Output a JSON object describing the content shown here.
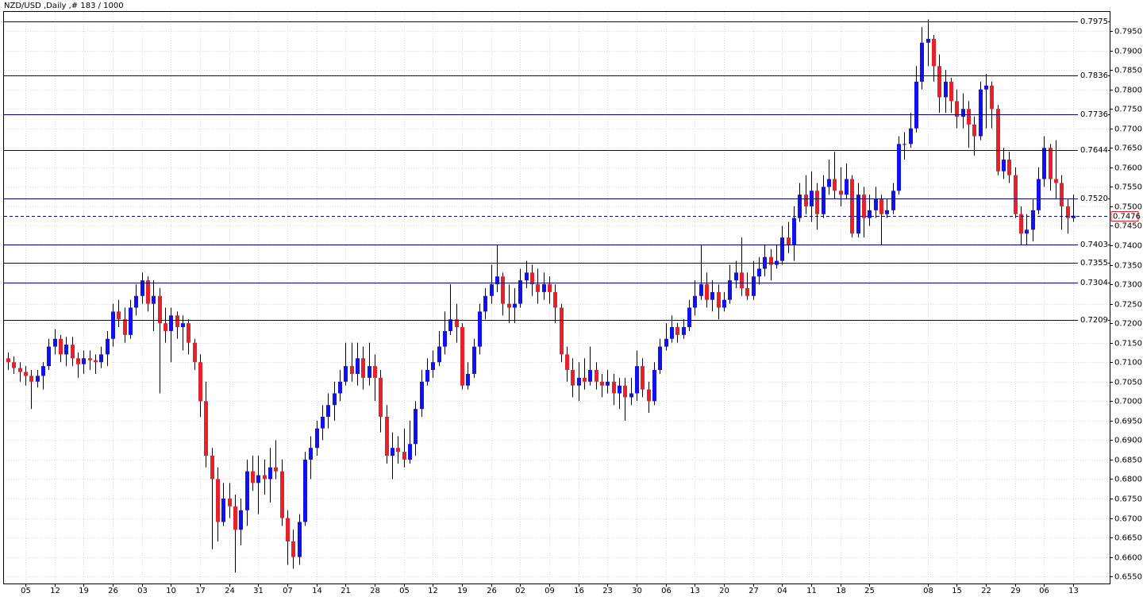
{
  "chart_data": {
    "type": "candlestick",
    "title": "NZD/USD ,Daily ,# 183 / 1000",
    "up_color": "#1010f0",
    "down_color": "#e8202a",
    "level_color": "#000080",
    "last_color": "#e8202a",
    "grid": true,
    "ylim": [
      0.6532,
      0.7999
    ],
    "yticks": [
      {
        "value": 0.655,
        "label": "0.6550"
      },
      {
        "value": 0.66,
        "label": "0.6600"
      },
      {
        "value": 0.665,
        "label": "0.6650"
      },
      {
        "value": 0.67,
        "label": "0.6700"
      },
      {
        "value": 0.675,
        "label": "0.6750"
      },
      {
        "value": 0.68,
        "label": "0.6800"
      },
      {
        "value": 0.685,
        "label": "0.6850"
      },
      {
        "value": 0.69,
        "label": "0.6900"
      },
      {
        "value": 0.695,
        "label": "0.6950"
      },
      {
        "value": 0.7,
        "label": "0.7000"
      },
      {
        "value": 0.705,
        "label": "0.7050"
      },
      {
        "value": 0.71,
        "label": "0.7100"
      },
      {
        "value": 0.715,
        "label": "0.7150"
      },
      {
        "value": 0.72,
        "label": "0.7200"
      },
      {
        "value": 0.725,
        "label": "0.7250"
      },
      {
        "value": 0.73,
        "label": "0.7300"
      },
      {
        "value": 0.735,
        "label": "0.7350"
      },
      {
        "value": 0.74,
        "label": "0.7400"
      },
      {
        "value": 0.745,
        "label": "0.7450"
      },
      {
        "value": 0.75,
        "label": "0.7500"
      },
      {
        "value": 0.755,
        "label": "0.7550"
      },
      {
        "value": 0.76,
        "label": "0.7600"
      },
      {
        "value": 0.765,
        "label": "0.7650"
      },
      {
        "value": 0.77,
        "label": "0.7700"
      },
      {
        "value": 0.775,
        "label": "0.7750"
      },
      {
        "value": 0.78,
        "label": "0.7800"
      },
      {
        "value": 0.785,
        "label": "0.7850"
      },
      {
        "value": 0.79,
        "label": "0.7900"
      },
      {
        "value": 0.795,
        "label": "0.7950"
      }
    ],
    "levels": [
      0.7975,
      0.7836,
      0.7736,
      0.7644,
      {
        "value": 0.752,
        "label": "0.7520"
      },
      0.7403,
      0.7355,
      0.7304,
      0.7209
    ],
    "last_price": 0.7476,
    "categories": [
      null,
      null,
      null,
      "05",
      null,
      null,
      null,
      null,
      "12",
      null,
      null,
      null,
      null,
      "19",
      null,
      null,
      null,
      null,
      "26",
      null,
      null,
      null,
      null,
      "03",
      null,
      null,
      null,
      null,
      "10",
      null,
      null,
      null,
      null,
      "17",
      null,
      null,
      null,
      null,
      "24",
      null,
      null,
      null,
      null,
      "31",
      null,
      null,
      null,
      null,
      "07",
      null,
      null,
      null,
      null,
      "14",
      null,
      null,
      null,
      null,
      "21",
      null,
      null,
      null,
      null,
      "28",
      null,
      null,
      null,
      null,
      "05",
      null,
      null,
      null,
      null,
      "12",
      null,
      null,
      null,
      null,
      "19",
      null,
      null,
      null,
      null,
      "26",
      null,
      null,
      null,
      null,
      "02",
      null,
      null,
      null,
      null,
      "09",
      null,
      null,
      null,
      null,
      "16",
      null,
      null,
      null,
      null,
      "23",
      null,
      null,
      null,
      null,
      "30",
      null,
      null,
      null,
      null,
      "06",
      null,
      null,
      null,
      null,
      "13",
      null,
      null,
      null,
      null,
      "20",
      null,
      null,
      null,
      null,
      "27",
      null,
      null,
      null,
      null,
      "04",
      null,
      null,
      null,
      null,
      "11",
      null,
      null,
      null,
      null,
      "18",
      null,
      null,
      null,
      null,
      "25",
      null,
      null,
      null,
      null,
      null,
      null,
      null,
      null,
      null,
      "08",
      null,
      null,
      null,
      null,
      "15",
      null,
      null,
      null,
      null,
      "22",
      null,
      null,
      null,
      null,
      "29",
      null,
      null,
      null,
      null,
      "06",
      null,
      null,
      null,
      null,
      "13"
    ],
    "ohlc": [
      [
        0.711,
        0.7125,
        0.708,
        0.71
      ],
      [
        0.71,
        0.7115,
        0.707,
        0.7085
      ],
      [
        0.7085,
        0.71,
        0.705,
        0.7075
      ],
      [
        0.7075,
        0.709,
        0.704,
        0.7065
      ],
      [
        0.7065,
        0.708,
        0.698,
        0.705
      ],
      [
        0.705,
        0.708,
        0.7035,
        0.7065
      ],
      [
        0.7065,
        0.71,
        0.703,
        0.709
      ],
      [
        0.709,
        0.716,
        0.708,
        0.714
      ],
      [
        0.714,
        0.7185,
        0.712,
        0.716
      ],
      [
        0.716,
        0.717,
        0.71,
        0.712
      ],
      [
        0.712,
        0.7165,
        0.709,
        0.7145
      ],
      [
        0.7145,
        0.7165,
        0.709,
        0.711
      ],
      [
        0.711,
        0.7125,
        0.706,
        0.7095
      ],
      [
        0.7095,
        0.713,
        0.707,
        0.711
      ],
      [
        0.711,
        0.713,
        0.708,
        0.7105
      ],
      [
        0.7105,
        0.712,
        0.707,
        0.71
      ],
      [
        0.71,
        0.714,
        0.7085,
        0.712
      ],
      [
        0.712,
        0.718,
        0.709,
        0.716
      ],
      [
        0.716,
        0.725,
        0.714,
        0.723
      ],
      [
        0.723,
        0.726,
        0.719,
        0.721
      ],
      [
        0.721,
        0.724,
        0.715,
        0.717
      ],
      [
        0.717,
        0.726,
        0.716,
        0.724
      ],
      [
        0.724,
        0.73,
        0.722,
        0.727
      ],
      [
        0.727,
        0.733,
        0.725,
        0.731
      ],
      [
        0.731,
        0.732,
        0.723,
        0.725
      ],
      [
        0.725,
        0.731,
        0.718,
        0.727
      ],
      [
        0.727,
        0.729,
        0.702,
        0.72
      ],
      [
        0.72,
        0.724,
        0.715,
        0.718
      ],
      [
        0.718,
        0.724,
        0.71,
        0.722
      ],
      [
        0.722,
        0.723,
        0.716,
        0.719
      ],
      [
        0.719,
        0.722,
        0.713,
        0.72
      ],
      [
        0.72,
        0.721,
        0.712,
        0.715
      ],
      [
        0.715,
        0.716,
        0.708,
        0.71
      ],
      [
        0.71,
        0.712,
        0.696,
        0.7
      ],
      [
        0.7,
        0.705,
        0.683,
        0.686
      ],
      [
        0.686,
        0.688,
        0.662,
        0.68
      ],
      [
        0.68,
        0.683,
        0.664,
        0.669
      ],
      [
        0.669,
        0.679,
        0.668,
        0.675
      ],
      [
        0.675,
        0.679,
        0.67,
        0.673
      ],
      [
        0.673,
        0.676,
        0.656,
        0.667
      ],
      [
        0.667,
        0.675,
        0.663,
        0.672
      ],
      [
        0.672,
        0.685,
        0.668,
        0.682
      ],
      [
        0.682,
        0.686,
        0.677,
        0.679
      ],
      [
        0.679,
        0.686,
        0.671,
        0.681
      ],
      [
        0.681,
        0.685,
        0.676,
        0.68
      ],
      [
        0.68,
        0.688,
        0.674,
        0.683
      ],
      [
        0.683,
        0.69,
        0.68,
        0.682
      ],
      [
        0.682,
        0.685,
        0.668,
        0.67
      ],
      [
        0.67,
        0.672,
        0.658,
        0.664
      ],
      [
        0.664,
        0.667,
        0.657,
        0.66
      ],
      [
        0.66,
        0.671,
        0.658,
        0.669
      ],
      [
        0.669,
        0.687,
        0.668,
        0.685
      ],
      [
        0.685,
        0.691,
        0.68,
        0.688
      ],
      [
        0.688,
        0.695,
        0.686,
        0.693
      ],
      [
        0.693,
        0.699,
        0.69,
        0.696
      ],
      [
        0.696,
        0.702,
        0.693,
        0.699
      ],
      [
        0.699,
        0.705,
        0.695,
        0.702
      ],
      [
        0.702,
        0.708,
        0.7,
        0.705
      ],
      [
        0.705,
        0.715,
        0.704,
        0.709
      ],
      [
        0.709,
        0.715,
        0.705,
        0.707
      ],
      [
        0.707,
        0.715,
        0.704,
        0.711
      ],
      [
        0.711,
        0.714,
        0.703,
        0.706
      ],
      [
        0.706,
        0.715,
        0.704,
        0.709
      ],
      [
        0.709,
        0.712,
        0.7,
        0.706
      ],
      [
        0.706,
        0.708,
        0.692,
        0.696
      ],
      [
        0.696,
        0.699,
        0.684,
        0.686
      ],
      [
        0.686,
        0.692,
        0.68,
        0.688
      ],
      [
        0.688,
        0.691,
        0.684,
        0.687
      ],
      [
        0.687,
        0.693,
        0.683,
        0.685
      ],
      [
        0.685,
        0.695,
        0.684,
        0.689
      ],
      [
        0.689,
        0.7,
        0.686,
        0.698
      ],
      [
        0.698,
        0.708,
        0.696,
        0.705
      ],
      [
        0.705,
        0.711,
        0.704,
        0.708
      ],
      [
        0.708,
        0.713,
        0.706,
        0.71
      ],
      [
        0.71,
        0.718,
        0.709,
        0.714
      ],
      [
        0.714,
        0.723,
        0.712,
        0.718
      ],
      [
        0.718,
        0.73,
        0.717,
        0.721
      ],
      [
        0.721,
        0.725,
        0.715,
        0.719
      ],
      [
        0.719,
        0.72,
        0.703,
        0.704
      ],
      [
        0.704,
        0.71,
        0.703,
        0.707
      ],
      [
        0.707,
        0.716,
        0.706,
        0.714
      ],
      [
        0.714,
        0.725,
        0.712,
        0.723
      ],
      [
        0.723,
        0.729,
        0.721,
        0.727
      ],
      [
        0.727,
        0.735,
        0.725,
        0.73
      ],
      [
        0.73,
        0.74,
        0.728,
        0.732
      ],
      [
        0.732,
        0.733,
        0.722,
        0.725
      ],
      [
        0.725,
        0.73,
        0.72,
        0.724
      ],
      [
        0.724,
        0.729,
        0.72,
        0.725
      ],
      [
        0.725,
        0.734,
        0.724,
        0.731
      ],
      [
        0.731,
        0.736,
        0.729,
        0.733
      ],
      [
        0.733,
        0.735,
        0.727,
        0.73
      ],
      [
        0.73,
        0.734,
        0.725,
        0.728
      ],
      [
        0.728,
        0.733,
        0.726,
        0.73
      ],
      [
        0.73,
        0.732,
        0.725,
        0.728
      ],
      [
        0.728,
        0.73,
        0.72,
        0.724
      ],
      [
        0.724,
        0.725,
        0.71,
        0.712
      ],
      [
        0.712,
        0.714,
        0.705,
        0.708
      ],
      [
        0.708,
        0.711,
        0.701,
        0.704
      ],
      [
        0.704,
        0.71,
        0.7,
        0.706
      ],
      [
        0.706,
        0.711,
        0.703,
        0.705
      ],
      [
        0.705,
        0.714,
        0.704,
        0.708
      ],
      [
        0.708,
        0.71,
        0.703,
        0.705
      ],
      [
        0.705,
        0.707,
        0.701,
        0.704
      ],
      [
        0.704,
        0.708,
        0.702,
        0.705
      ],
      [
        0.705,
        0.707,
        0.699,
        0.702
      ],
      [
        0.702,
        0.706,
        0.698,
        0.704
      ],
      [
        0.704,
        0.706,
        0.695,
        0.701
      ],
      [
        0.701,
        0.706,
        0.699,
        0.702
      ],
      [
        0.702,
        0.713,
        0.7,
        0.709
      ],
      [
        0.709,
        0.711,
        0.701,
        0.703
      ],
      [
        0.703,
        0.705,
        0.697,
        0.7
      ],
      [
        0.7,
        0.71,
        0.699,
        0.708
      ],
      [
        0.708,
        0.716,
        0.707,
        0.714
      ],
      [
        0.714,
        0.72,
        0.713,
        0.716
      ],
      [
        0.716,
        0.722,
        0.715,
        0.719
      ],
      [
        0.719,
        0.72,
        0.715,
        0.717
      ],
      [
        0.717,
        0.721,
        0.716,
        0.719
      ],
      [
        0.719,
        0.726,
        0.718,
        0.724
      ],
      [
        0.724,
        0.731,
        0.722,
        0.727
      ],
      [
        0.727,
        0.74,
        0.726,
        0.73
      ],
      [
        0.73,
        0.733,
        0.724,
        0.726
      ],
      [
        0.726,
        0.731,
        0.723,
        0.728
      ],
      [
        0.728,
        0.73,
        0.721,
        0.724
      ],
      [
        0.724,
        0.728,
        0.723,
        0.726
      ],
      [
        0.726,
        0.735,
        0.725,
        0.731
      ],
      [
        0.731,
        0.736,
        0.729,
        0.733
      ],
      [
        0.733,
        0.742,
        0.727,
        0.729
      ],
      [
        0.729,
        0.733,
        0.726,
        0.727
      ],
      [
        0.727,
        0.736,
        0.726,
        0.732
      ],
      [
        0.732,
        0.737,
        0.73,
        0.734
      ],
      [
        0.734,
        0.74,
        0.732,
        0.737
      ],
      [
        0.737,
        0.739,
        0.731,
        0.735
      ],
      [
        0.735,
        0.74,
        0.734,
        0.736
      ],
      [
        0.736,
        0.745,
        0.735,
        0.742
      ],
      [
        0.742,
        0.746,
        0.738,
        0.74
      ],
      [
        0.74,
        0.75,
        0.736,
        0.747
      ],
      [
        0.747,
        0.756,
        0.746,
        0.753
      ],
      [
        0.753,
        0.758,
        0.748,
        0.75
      ],
      [
        0.75,
        0.759,
        0.746,
        0.754
      ],
      [
        0.754,
        0.756,
        0.744,
        0.748
      ],
      [
        0.748,
        0.758,
        0.747,
        0.755
      ],
      [
        0.755,
        0.762,
        0.753,
        0.757
      ],
      [
        0.757,
        0.764,
        0.752,
        0.754
      ],
      [
        0.754,
        0.76,
        0.75,
        0.753
      ],
      [
        0.753,
        0.761,
        0.752,
        0.757
      ],
      [
        0.757,
        0.758,
        0.742,
        0.743
      ],
      [
        0.743,
        0.756,
        0.742,
        0.753
      ],
      [
        0.753,
        0.755,
        0.742,
        0.747
      ],
      [
        0.747,
        0.753,
        0.745,
        0.749
      ],
      [
        0.749,
        0.755,
        0.747,
        0.752
      ],
      [
        0.752,
        0.753,
        0.74,
        0.748
      ],
      [
        0.748,
        0.752,
        0.747,
        0.749
      ],
      [
        0.749,
        0.756,
        0.748,
        0.754
      ],
      [
        0.754,
        0.768,
        0.753,
        0.766
      ],
      [
        0.766,
        0.769,
        0.762,
        0.766
      ],
      [
        0.766,
        0.774,
        0.765,
        0.77
      ],
      [
        0.77,
        0.786,
        0.769,
        0.782
      ],
      [
        0.782,
        0.796,
        0.78,
        0.792
      ],
      [
        0.792,
        0.798,
        0.786,
        0.793
      ],
      [
        0.793,
        0.794,
        0.782,
        0.786
      ],
      [
        0.786,
        0.789,
        0.774,
        0.778
      ],
      [
        0.778,
        0.785,
        0.774,
        0.782
      ],
      [
        0.782,
        0.783,
        0.774,
        0.777
      ],
      [
        0.777,
        0.78,
        0.77,
        0.773
      ],
      [
        0.773,
        0.779,
        0.77,
        0.775
      ],
      [
        0.775,
        0.777,
        0.765,
        0.771
      ],
      [
        0.771,
        0.773,
        0.763,
        0.768
      ],
      [
        0.768,
        0.782,
        0.767,
        0.78
      ],
      [
        0.78,
        0.784,
        0.77,
        0.781
      ],
      [
        0.781,
        0.782,
        0.77,
        0.775
      ],
      [
        0.775,
        0.776,
        0.758,
        0.759
      ],
      [
        0.759,
        0.765,
        0.757,
        0.762
      ],
      [
        0.762,
        0.764,
        0.756,
        0.758
      ],
      [
        0.758,
        0.76,
        0.747,
        0.748
      ],
      [
        0.748,
        0.75,
        0.74,
        0.743
      ],
      [
        0.743,
        0.748,
        0.74,
        0.744
      ],
      [
        0.744,
        0.752,
        0.741,
        0.749
      ],
      [
        0.749,
        0.76,
        0.748,
        0.757
      ],
      [
        0.757,
        0.768,
        0.755,
        0.765
      ],
      [
        0.765,
        0.766,
        0.754,
        0.757
      ],
      [
        0.757,
        0.767,
        0.752,
        0.756
      ],
      [
        0.756,
        0.758,
        0.744,
        0.75
      ],
      [
        0.75,
        0.752,
        0.743,
        0.747
      ],
      [
        0.747,
        0.753,
        0.746,
        0.7476
      ]
    ]
  }
}
